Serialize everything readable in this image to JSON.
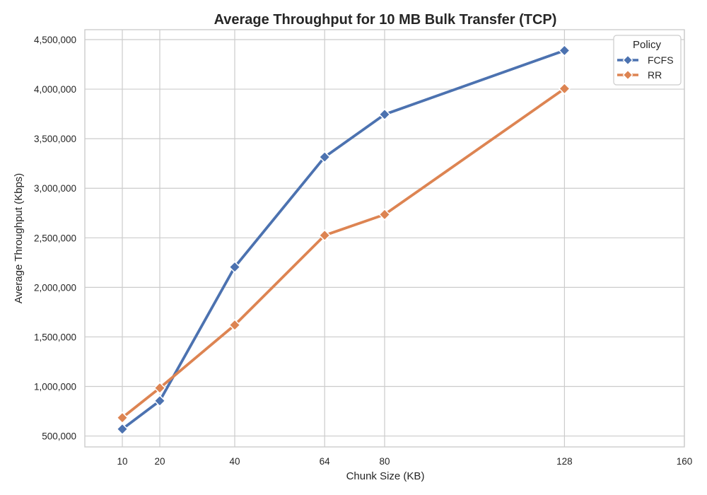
{
  "chart_data": {
    "type": "line",
    "title": "Average Throughput for 10 MB Bulk Transfer (TCP)",
    "xlabel": "Chunk Size (KB)",
    "ylabel": "Average Throughput (Kbps)",
    "x": [
      10,
      20,
      40,
      64,
      80,
      128
    ],
    "xlim": [
      0,
      160
    ],
    "ylim": [
      390000,
      4600000
    ],
    "xticks": [
      10,
      20,
      40,
      64,
      80,
      128,
      160
    ],
    "xtick_labels": [
      "10",
      "20",
      "40",
      "64",
      "80",
      "128",
      "160"
    ],
    "yticks": [
      500000,
      1000000,
      1500000,
      2000000,
      2500000,
      3000000,
      3500000,
      4000000,
      4500000
    ],
    "ytick_labels": [
      "500,000",
      "1,000,000",
      "1,500,000",
      "2,000,000",
      "2,500,000",
      "3,000,000",
      "3,500,000",
      "4,000,000",
      "4,500,000"
    ],
    "grid": true,
    "legend": {
      "title": "Policy",
      "placement": "top-right"
    },
    "series": [
      {
        "name": "FCFS",
        "color": "#4c72b0",
        "marker": "diamond",
        "values": [
          570000,
          855000,
          2205000,
          3315000,
          3745000,
          4390000
        ]
      },
      {
        "name": "RR",
        "color": "#dd8452",
        "marker": "diamond",
        "values": [
          685000,
          985000,
          1620000,
          2525000,
          2735000,
          4005000
        ]
      }
    ]
  }
}
